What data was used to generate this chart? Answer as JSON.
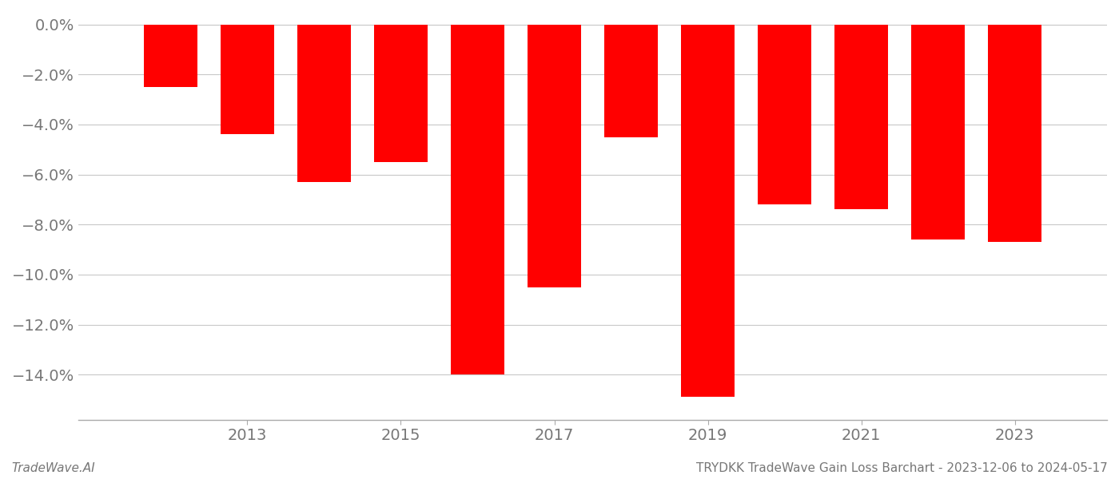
{
  "years": [
    2012,
    2013,
    2014,
    2015,
    2016,
    2017,
    2018,
    2019,
    2020,
    2021,
    2022,
    2023
  ],
  "values": [
    -2.5,
    -4.4,
    -6.3,
    -5.5,
    -14.0,
    -10.5,
    -4.5,
    -14.9,
    -7.2,
    -7.4,
    -8.6,
    -8.7
  ],
  "bar_color": "#ff0000",
  "background_color": "#ffffff",
  "grid_color": "#c8c8c8",
  "text_color": "#777777",
  "ylim_min": -15.8,
  "ylim_max": 0.5,
  "yticks": [
    0.0,
    -2.0,
    -4.0,
    -6.0,
    -8.0,
    -10.0,
    -12.0,
    -14.0
  ],
  "xtick_labels": [
    "2013",
    "2015",
    "2017",
    "2019",
    "2021",
    "2023"
  ],
  "xtick_positions": [
    2013,
    2015,
    2017,
    2019,
    2021,
    2023
  ],
  "tick_fontsize": 14,
  "footer_left": "TradeWave.AI",
  "footer_right": "TRYDKK TradeWave Gain Loss Barchart - 2023-12-06 to 2024-05-17",
  "footer_fontsize": 11
}
